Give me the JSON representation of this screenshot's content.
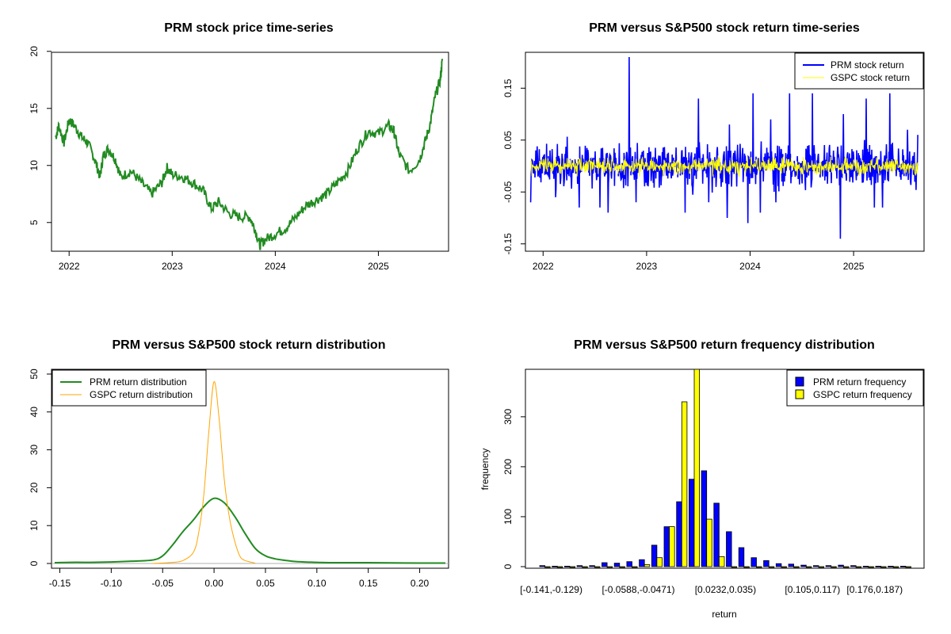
{
  "colors": {
    "prm_price": "#228B22",
    "prm_return": "#0000FF",
    "gspc_return": "#FFFF00",
    "prm_density": "#228B22",
    "gspc_density": "#FFA500",
    "prm_bar": "#0000FF",
    "gspc_bar": "#FFFF00"
  },
  "chart_data": [
    {
      "id": "price",
      "type": "line",
      "title": "PRM stock price time-series",
      "xlabel": "",
      "ylabel": "",
      "xlim": [
        2021.86,
        2025.65
      ],
      "ylim": [
        2.9,
        19.5
      ],
      "x_ticks": [
        {
          "v": 2022.0,
          "label": "2022"
        },
        {
          "v": 2023.0,
          "label": "2023"
        },
        {
          "v": 2024.0,
          "label": "2024"
        },
        {
          "v": 2025.0,
          "label": "2025"
        }
      ],
      "y_ticks": [
        {
          "v": 5,
          "label": "5"
        },
        {
          "v": 10,
          "label": "10"
        },
        {
          "v": 15,
          "label": "15"
        },
        {
          "v": 20,
          "label": "20"
        }
      ],
      "series": [
        {
          "name": "PRM stock price",
          "color": "#228B22",
          "x": [
            2021.87,
            2021.9,
            2021.95,
            2022.0,
            2022.05,
            2022.12,
            2022.18,
            2022.25,
            2022.3,
            2022.33,
            2022.38,
            2022.45,
            2022.5,
            2022.6,
            2022.7,
            2022.8,
            2022.9,
            2022.95,
            2023.0,
            2023.1,
            2023.2,
            2023.3,
            2023.38,
            2023.45,
            2023.55,
            2023.65,
            2023.75,
            2023.8,
            2023.85,
            2023.9,
            2024.0,
            2024.1,
            2024.2,
            2024.3,
            2024.4,
            2024.5,
            2024.6,
            2024.7,
            2024.8,
            2024.9,
            2025.0,
            2025.1,
            2025.15,
            2025.2,
            2025.3,
            2025.4,
            2025.45,
            2025.5,
            2025.55,
            2025.6,
            2025.62
          ],
          "y": [
            12.5,
            13.5,
            12.0,
            14.0,
            13.5,
            12.5,
            12.0,
            10.5,
            9.0,
            10.8,
            11.5,
            10.5,
            9.0,
            9.5,
            8.5,
            7.5,
            8.5,
            9.8,
            9.2,
            9.0,
            8.5,
            7.8,
            6.2,
            6.8,
            5.8,
            5.5,
            5.5,
            4.5,
            3.0,
            3.5,
            4.0,
            4.5,
            5.5,
            6.5,
            7.0,
            7.5,
            8.5,
            9.5,
            11.5,
            13.0,
            12.8,
            13.5,
            13.0,
            11.0,
            9.5,
            10.5,
            12.0,
            13.5,
            16.0,
            17.5,
            19.2
          ]
        }
      ],
      "legend": null
    },
    {
      "id": "returns",
      "type": "line",
      "title": "PRM versus S&P500 stock return time-series",
      "xlabel": "",
      "ylabel": "",
      "xlim": [
        2021.86,
        2025.65
      ],
      "ylim": [
        -0.155,
        0.21
      ],
      "x_ticks": [
        {
          "v": 2022.0,
          "label": "2022"
        },
        {
          "v": 2023.0,
          "label": "2023"
        },
        {
          "v": 2024.0,
          "label": "2024"
        },
        {
          "v": 2025.0,
          "label": "2025"
        }
      ],
      "y_ticks": [
        {
          "v": -0.15,
          "label": "-0.15"
        },
        {
          "v": -0.05,
          "label": "-0.05"
        },
        {
          "v": 0.05,
          "label": "0.05"
        },
        {
          "v": 0.15,
          "label": "0.15"
        }
      ],
      "series": [
        {
          "name": "PRM stock return",
          "color": "#0000FF",
          "amplitude": 0.03,
          "spikes": [
            [
              2021.88,
              -0.07
            ],
            [
              2022.12,
              -0.06
            ],
            [
              2022.35,
              0.14
            ],
            [
              2022.35,
              -0.08
            ],
            [
              2022.55,
              -0.08
            ],
            [
              2022.63,
              -0.09
            ],
            [
              2022.83,
              0.21
            ],
            [
              2022.9,
              -0.07
            ],
            [
              2023.37,
              -0.09
            ],
            [
              2023.5,
              0.13
            ],
            [
              2023.6,
              -0.07
            ],
            [
              2023.78,
              -0.1
            ],
            [
              2023.8,
              0.08
            ],
            [
              2023.98,
              -0.11
            ],
            [
              2024.03,
              0.14
            ],
            [
              2024.1,
              -0.09
            ],
            [
              2024.2,
              0.09
            ],
            [
              2024.25,
              -0.07
            ],
            [
              2024.38,
              0.14
            ],
            [
              2024.6,
              0.14
            ],
            [
              2024.87,
              -0.14
            ],
            [
              2024.9,
              0.1
            ],
            [
              2025.12,
              0.13
            ],
            [
              2025.2,
              -0.08
            ],
            [
              2025.28,
              -0.08
            ],
            [
              2025.35,
              0.14
            ],
            [
              2025.52,
              0.07
            ],
            [
              2025.62,
              0.06
            ]
          ]
        },
        {
          "name": "GSPC stock return",
          "color": "#FFFF00",
          "amplitude": 0.012,
          "spikes": []
        }
      ],
      "legend": {
        "position": "top-right",
        "entries": [
          "PRM stock return",
          "GSPC stock return"
        ]
      }
    },
    {
      "id": "density",
      "type": "line",
      "title": "PRM versus S&P500 stock return distribution",
      "xlabel": "",
      "ylabel": "",
      "xlim": [
        -0.155,
        0.225
      ],
      "ylim": [
        0,
        50
      ],
      "x_ticks": [
        {
          "v": -0.15,
          "label": "-0.15"
        },
        {
          "v": -0.1,
          "label": "-0.10"
        },
        {
          "v": -0.05,
          "label": "-0.05"
        },
        {
          "v": 0.0,
          "label": "0.00"
        },
        {
          "v": 0.05,
          "label": "0.05"
        },
        {
          "v": 0.1,
          "label": "0.10"
        },
        {
          "v": 0.15,
          "label": "0.15"
        },
        {
          "v": 0.2,
          "label": "0.20"
        }
      ],
      "y_ticks": [
        {
          "v": 0,
          "label": "0"
        },
        {
          "v": 10,
          "label": "10"
        },
        {
          "v": 20,
          "label": "20"
        },
        {
          "v": 30,
          "label": "30"
        },
        {
          "v": 40,
          "label": "40"
        },
        {
          "v": 50,
          "label": "50"
        }
      ],
      "series": [
        {
          "name": "PRM return distribution",
          "color": "#228B22",
          "x": [
            -0.155,
            -0.14,
            -0.12,
            -0.1,
            -0.08,
            -0.06,
            -0.05,
            -0.04,
            -0.03,
            -0.02,
            -0.01,
            0.0,
            0.01,
            0.02,
            0.03,
            0.04,
            0.05,
            0.06,
            0.07,
            0.08,
            0.1,
            0.12,
            0.15,
            0.2,
            0.225
          ],
          "y": [
            0.2,
            0.3,
            0.3,
            0.4,
            0.6,
            0.9,
            2.0,
            5.0,
            8.5,
            11.5,
            15.0,
            17.2,
            16.0,
            12.5,
            8.0,
            4.0,
            2.0,
            1.2,
            0.8,
            0.5,
            0.3,
            0.2,
            0.2,
            0.1,
            0.1
          ]
        },
        {
          "name": "GSPC return distribution",
          "color": "#FFA500",
          "x": [
            -0.06,
            -0.04,
            -0.03,
            -0.02,
            -0.015,
            -0.01,
            -0.005,
            0.0,
            0.005,
            0.01,
            0.015,
            0.02,
            0.025,
            0.03,
            0.04
          ],
          "y": [
            0,
            0.3,
            0.8,
            3.0,
            8.0,
            18.0,
            35.0,
            48.0,
            38.0,
            22.0,
            12.0,
            6.0,
            2.0,
            0.8,
            0.1
          ]
        }
      ],
      "legend": {
        "position": "top-left",
        "entries": [
          "PRM return distribution",
          "GSPC return distribution"
        ]
      }
    },
    {
      "id": "frequency",
      "type": "bar",
      "title": "PRM versus S&P500 return frequency distribution",
      "xlabel": "return",
      "ylabel": "frequency",
      "ylim": [
        0,
        395
      ],
      "y_ticks": [
        {
          "v": 0,
          "label": "0"
        },
        {
          "v": 100,
          "label": "100"
        },
        {
          "v": 200,
          "label": "200"
        },
        {
          "v": 300,
          "label": "300"
        }
      ],
      "category_labels": [
        {
          "index": 0,
          "label": "[-0.141,-0.129)"
        },
        {
          "index": 7,
          "label": "[-0.0588,-0.0471)"
        },
        {
          "index": 14,
          "label": "[0.0232,0.035)"
        },
        {
          "index": 21,
          "label": "[0.105,0.117)"
        },
        {
          "index": 26,
          "label": "[0.176,0.187)"
        }
      ],
      "n_categories": 30,
      "series": [
        {
          "name": "PRM return frequency",
          "color": "#0000FF",
          "values": [
            2,
            1,
            1,
            2,
            2,
            8,
            7,
            10,
            14,
            43,
            80,
            130,
            175,
            192,
            127,
            70,
            38,
            18,
            12,
            6,
            5,
            3,
            2,
            2,
            3,
            2,
            1,
            1,
            1,
            1
          ]
        },
        {
          "name": "GSPC return frequency",
          "color": "#FFFF00",
          "values": [
            0,
            0,
            0,
            0,
            0,
            0,
            0,
            0,
            4,
            18,
            80,
            330,
            395,
            95,
            20,
            0,
            0,
            0,
            0,
            0,
            0,
            0,
            0,
            0,
            0,
            0,
            0,
            0,
            0,
            0
          ]
        }
      ],
      "legend": {
        "position": "top-right",
        "entries": [
          "PRM return frequency",
          "GSPC return frequency"
        ]
      }
    }
  ]
}
